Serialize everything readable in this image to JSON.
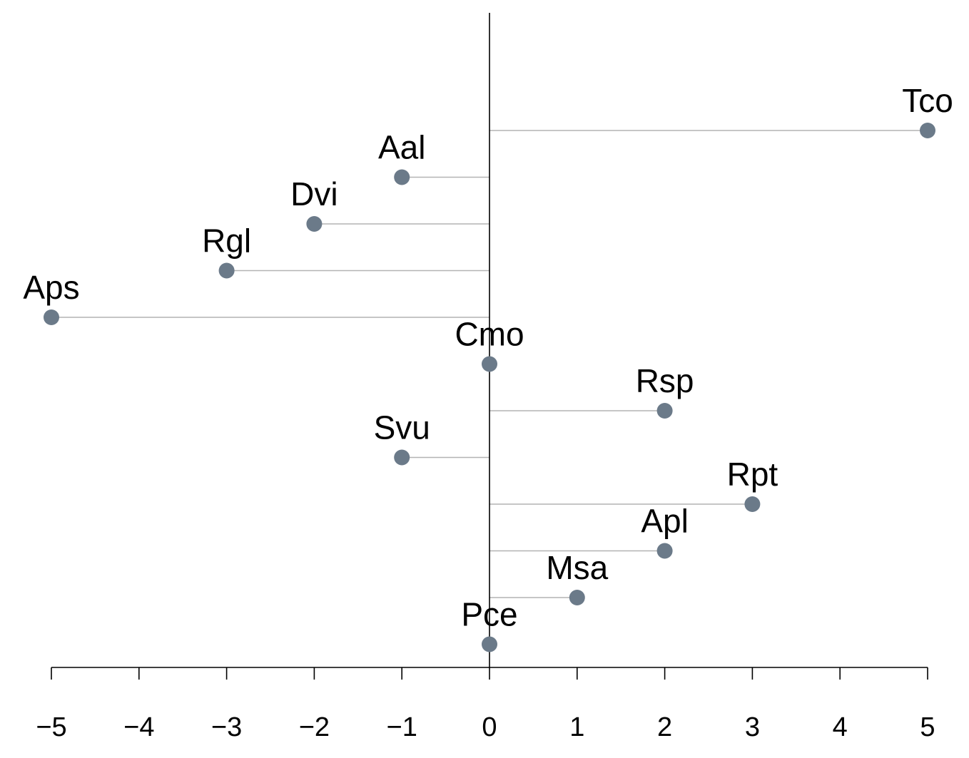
{
  "chart_data": {
    "type": "scatter",
    "title": "",
    "xlabel": "",
    "ylabel": "",
    "xlim": [
      -5,
      5
    ],
    "x_ticks": [
      -5,
      -4,
      -3,
      -2,
      -1,
      0,
      1,
      2,
      3,
      4,
      5
    ],
    "x_tick_labels": [
      "−5",
      "−4",
      "−3",
      "−2",
      "−1",
      "0",
      "1",
      "2",
      "3",
      "4",
      "5"
    ],
    "grid": false,
    "reference_line": 0,
    "points": [
      {
        "label": "Tco",
        "x": 5
      },
      {
        "label": "Aal",
        "x": -1
      },
      {
        "label": "Dvi",
        "x": -2
      },
      {
        "label": "Rgl",
        "x": -3
      },
      {
        "label": "Aps",
        "x": -5
      },
      {
        "label": "Cmo",
        "x": 0
      },
      {
        "label": "Rsp",
        "x": 2
      },
      {
        "label": "Svu",
        "x": -1
      },
      {
        "label": "Rpt",
        "x": 3
      },
      {
        "label": "Apl",
        "x": 2
      },
      {
        "label": "Msa",
        "x": 1
      },
      {
        "label": "Pce",
        "x": 0
      }
    ],
    "colors": {
      "point": "#6b7a89",
      "connector": "#b3b3b3",
      "axis": "#000000"
    }
  }
}
